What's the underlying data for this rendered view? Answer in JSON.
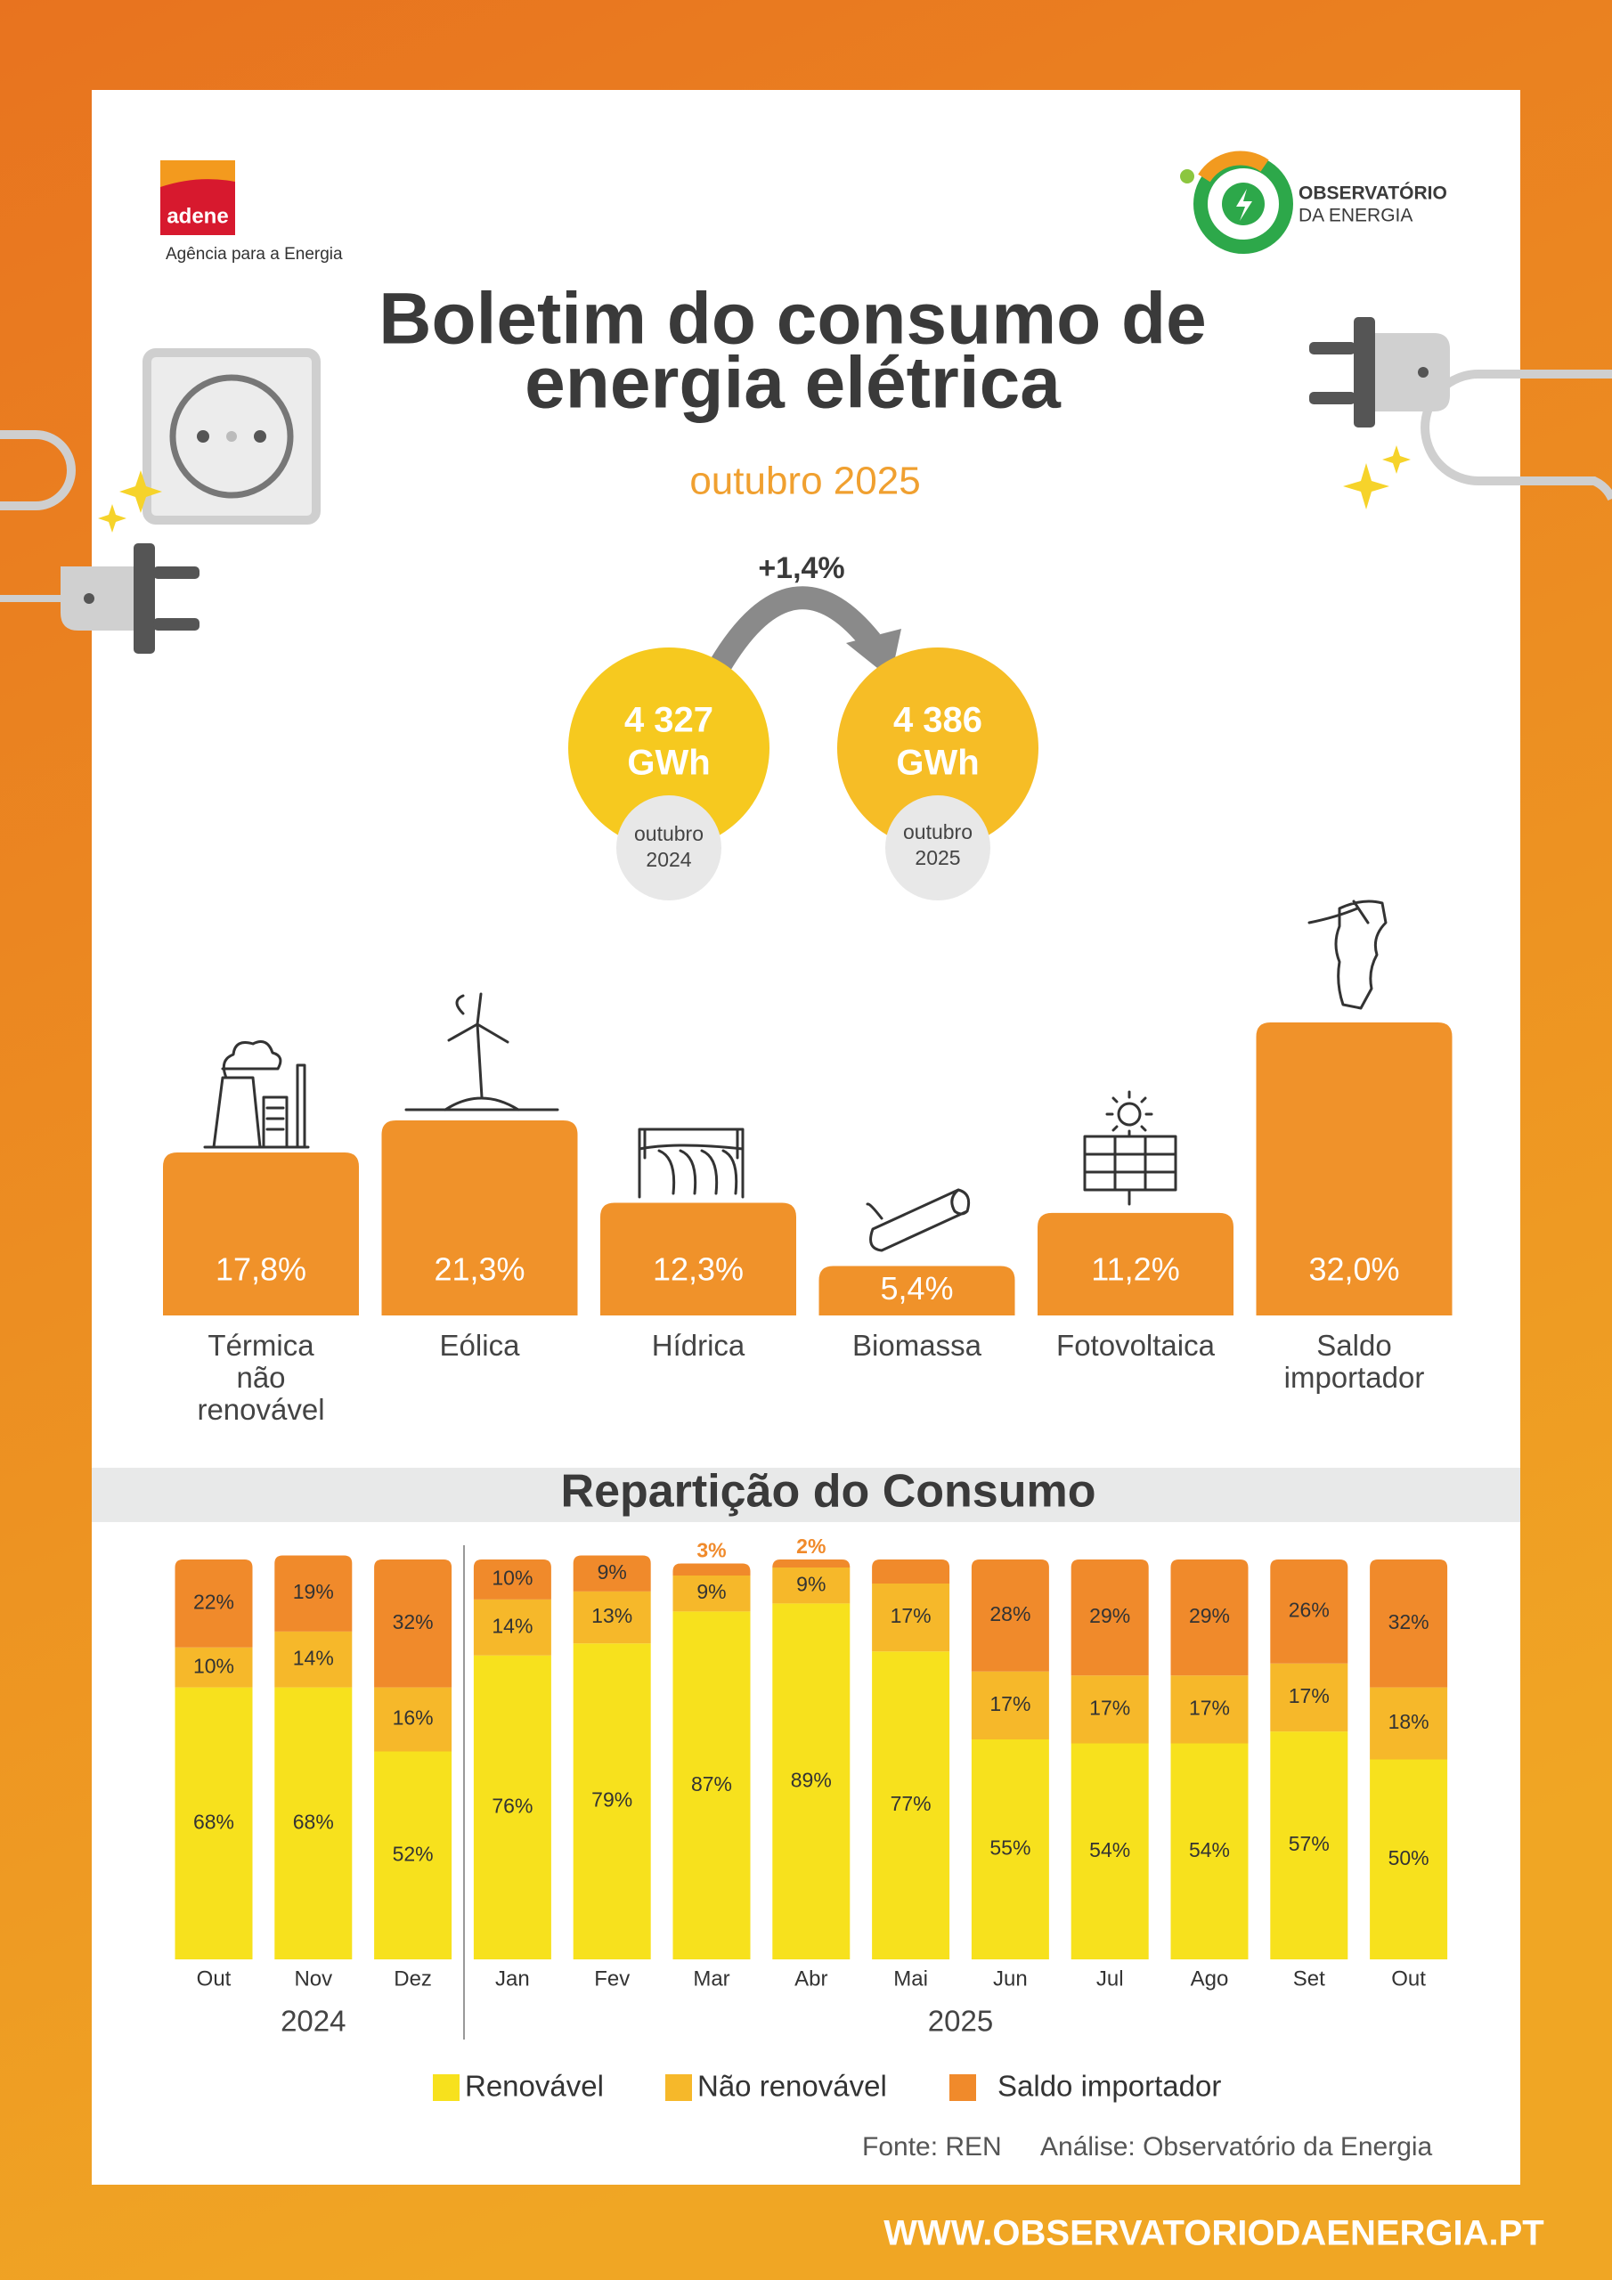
{
  "header": {
    "logo_left": "adene",
    "logo_left_tagline": "Agência para a Energia",
    "logo_right_line1": "OBSERVATÓRIO",
    "logo_right_line2": "DA ENERGIA",
    "title_line1": "Boletim do consumo de",
    "title_line2": "energia elétrica",
    "subtitle": "outubro 2025"
  },
  "comparison": {
    "change": "+1,4%",
    "items": [
      {
        "value": "4 327",
        "unit": "GWh",
        "period_line1": "outubro",
        "period_line2": "2024"
      },
      {
        "value": "4 386",
        "unit": "GWh",
        "period_line1": "outubro",
        "period_line2": "2025"
      }
    ]
  },
  "chart_data": [
    {
      "type": "bar",
      "categories": [
        "Térmica não renovável",
        "Eólica",
        "Hídrica",
        "Biomassa",
        "Fotovoltaica",
        "Saldo importador"
      ],
      "values": [
        17.8,
        21.3,
        12.3,
        5.4,
        11.2,
        32.0
      ],
      "value_labels": [
        "17,8%",
        "21,3%",
        "12,3%",
        "5,4%",
        "11,2%",
        "32,0%"
      ],
      "color": "#f0922a"
    },
    {
      "type": "stacked_bar",
      "title": "Repartição do Consumo",
      "groups": [
        {
          "name": "2024",
          "categories": [
            "Out",
            "Nov",
            "Dez"
          ]
        },
        {
          "name": "2025",
          "categories": [
            "Jan",
            "Fev",
            "Mar",
            "Abr",
            "Mai",
            "Jun",
            "Jul",
            "Ago",
            "Set",
            "Out"
          ]
        }
      ],
      "series": [
        {
          "name": "Renovável",
          "color": "#f7e11d",
          "values": [
            68,
            68,
            52,
            76,
            79,
            87,
            89,
            77,
            55,
            54,
            54,
            57,
            50
          ],
          "value_labels": [
            "68%",
            "68%",
            "52%",
            "76%",
            "79%",
            "87%",
            "89%",
            "77%",
            "55%",
            "54%",
            "54%",
            "57%",
            "50%"
          ]
        },
        {
          "name": "Não renovável",
          "color": "#f6b82a",
          "values": [
            10,
            14,
            16,
            14,
            13,
            9,
            9,
            17,
            17,
            17,
            17,
            17,
            18
          ],
          "value_labels": [
            "10%",
            "14%",
            "16%",
            "14%",
            "13%",
            "9%",
            "9%",
            "17%",
            "17%",
            "17%",
            "17%",
            "17%",
            "18%"
          ]
        },
        {
          "name": "Saldo importador",
          "color": "#f08a2b",
          "values": [
            22,
            19,
            32,
            10,
            9,
            3,
            2,
            6,
            28,
            29,
            29,
            26,
            32
          ],
          "value_labels": [
            "22%",
            "19%",
            "32%",
            "10%",
            "9%",
            "3%",
            "2%",
            null,
            "28%",
            "29%",
            "29%",
            "26%",
            "32%"
          ]
        }
      ]
    }
  ],
  "footer": {
    "source": "Fonte: REN",
    "analysis": "Análise: Observatório da Energia",
    "website": "WWW.OBSERVATORIODAENERGIA.PT"
  }
}
